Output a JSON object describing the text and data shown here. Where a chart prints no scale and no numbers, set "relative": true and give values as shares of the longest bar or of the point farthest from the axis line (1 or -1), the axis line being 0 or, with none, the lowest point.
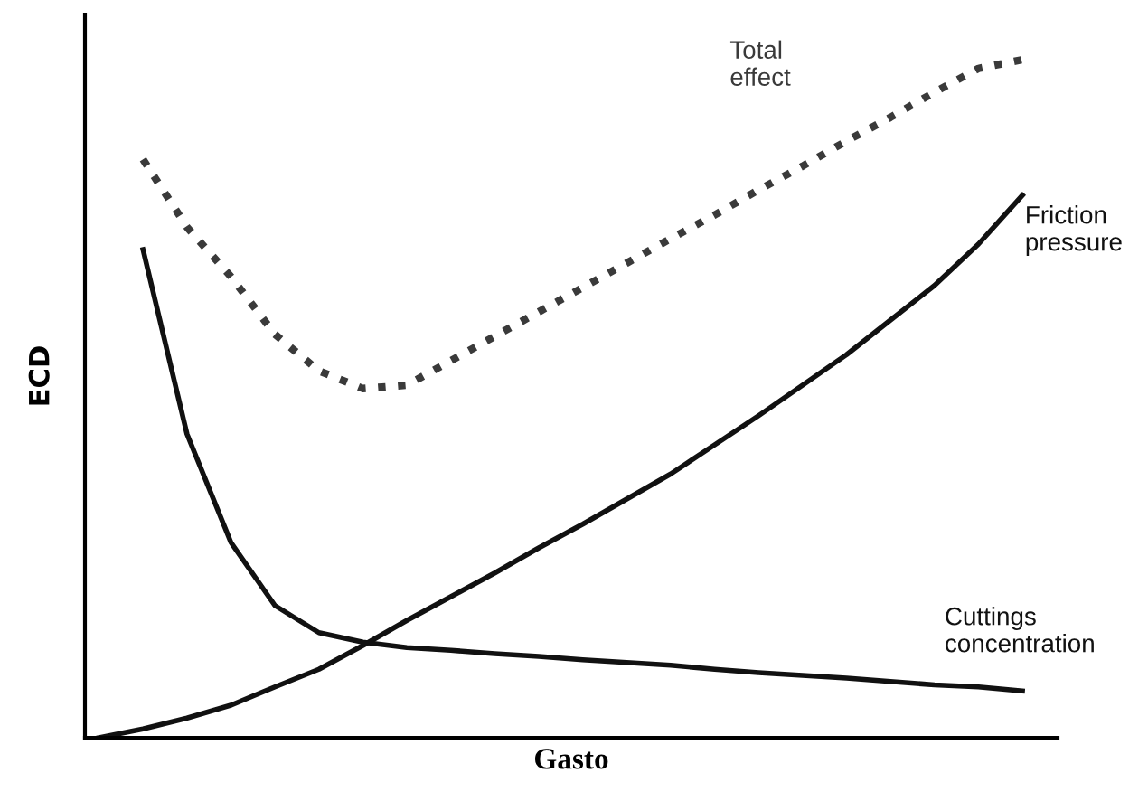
{
  "chart_data": {
    "type": "line",
    "relative": true,
    "xlabel": "Gasto",
    "ylabel": "ECD",
    "legend": false,
    "marker": "none",
    "categories": [
      null,
      null,
      null,
      null,
      null,
      null,
      null,
      null,
      null,
      null,
      null,
      null,
      null,
      null,
      null,
      null,
      null,
      null,
      null,
      null,
      null,
      null
    ],
    "series": [
      {
        "name": "Total effect",
        "color": "#3a3a3a",
        "line_style": "dotted",
        "values": [
          null,
          0.853,
          0.753,
          0.68,
          0.595,
          0.541,
          0.515,
          0.52,
          0.556,
          0.592,
          0.628,
          0.664,
          0.7,
          0.736,
          0.771,
          0.808,
          0.843,
          0.88,
          0.915,
          0.952,
          0.987,
          1.0
        ]
      },
      {
        "name": "Friction pressure",
        "color": "#111111",
        "line_style": "solid",
        "values": [
          0,
          0.013,
          0.029,
          0.048,
          0.075,
          0.101,
          0.136,
          0.173,
          0.208,
          0.243,
          0.28,
          0.315,
          0.352,
          0.389,
          0.432,
          0.475,
          0.52,
          0.565,
          0.616,
          0.667,
          0.728,
          0.8
        ]
      },
      {
        "name": "Cuttings concentration",
        "color": "#111111",
        "line_style": "solid",
        "values": [
          null,
          0.72,
          0.448,
          0.288,
          0.195,
          0.155,
          0.141,
          0.133,
          0.129,
          0.124,
          0.12,
          0.115,
          0.111,
          0.107,
          0.101,
          0.096,
          0.092,
          0.088,
          0.083,
          0.078,
          0.075,
          0.069
        ]
      }
    ]
  }
}
